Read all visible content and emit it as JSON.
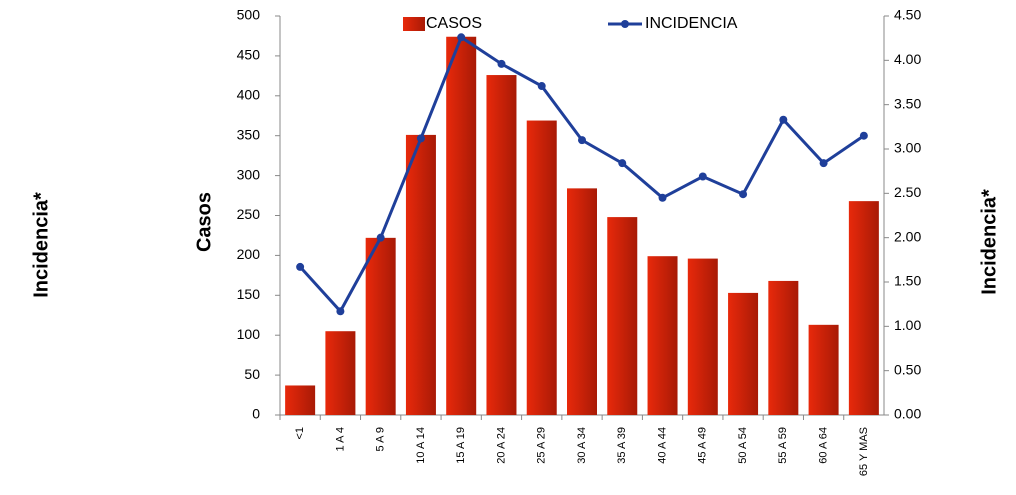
{
  "chart_data": {
    "type": "bar_line",
    "categories": [
      "<1",
      "1 A 4",
      "5 A 9",
      "10 A 14",
      "15 A 19",
      "20 A 24",
      "25 A 29",
      "30 A 34",
      "35 A 39",
      "40 A 44",
      "45 A 49",
      "50 A 54",
      "55 A 59",
      "60 A 64",
      "65 Y MAS"
    ],
    "series": [
      {
        "name": "CASOS",
        "color": "#e8290b",
        "type": "bar",
        "values": [
          37,
          105,
          222,
          351,
          474,
          426,
          369,
          284,
          248,
          199,
          196,
          153,
          168,
          113,
          268
        ]
      },
      {
        "name": "INCIDENCIA",
        "color": "#1f3f9a",
        "type": "line",
        "axis": "y2",
        "values": [
          1.67,
          1.17,
          2.0,
          3.12,
          4.26,
          3.96,
          3.71,
          3.1,
          2.84,
          2.45,
          2.69,
          2.49,
          3.33,
          2.84,
          3.15
        ]
      }
    ],
    "y_label": "Casos",
    "y2_label": "Incidencia*",
    "annotations": [
      "Incidencia*"
    ],
    "ylim": [
      0,
      500
    ],
    "yticks": [
      0,
      50,
      100,
      150,
      200,
      250,
      300,
      350,
      400,
      450,
      500
    ],
    "y2lim": [
      0,
      4.5
    ],
    "y2ticks": [
      {
        "value": 0,
        "label": "0.00"
      },
      {
        "value": 0.5,
        "label": "0.50"
      },
      {
        "value": 1,
        "label": "1.00"
      },
      {
        "value": 1.5,
        "label": "1.50"
      },
      {
        "value": 2,
        "label": "2.00"
      },
      {
        "value": 2.5,
        "label": "2.50"
      },
      {
        "value": 3,
        "label": "3.00"
      },
      {
        "value": 3.5,
        "label": "3.50"
      },
      {
        "value": 4,
        "label": "4.00"
      },
      {
        "value": 4.5,
        "label": "4.50"
      }
    ],
    "legend": "top"
  }
}
